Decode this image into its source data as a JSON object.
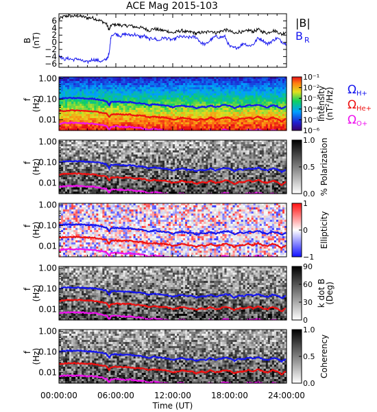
{
  "title": "ACE Mag 2015-103",
  "colors": {
    "blue": "#1515ee",
    "red": "#ee1010",
    "magenta": "#ee10ee",
    "black": "#000000"
  },
  "chart_data": [
    {
      "type": "line",
      "panel": "magnetic field",
      "ylabel": "B",
      "yunit": "(nT)",
      "ylim": [
        -7,
        8
      ],
      "yticks": [
        "6",
        "4",
        "2",
        "0",
        "−2",
        "−4",
        "−6"
      ],
      "ytick_values": [
        6,
        4,
        2,
        0,
        -2,
        -4,
        -6
      ],
      "x_hours": [
        0,
        0.5,
        1,
        1.5,
        2,
        2.5,
        3,
        3.5,
        4,
        4.5,
        5,
        5.3,
        5.5,
        6,
        6.5,
        7,
        7.5,
        8,
        8.5,
        9,
        9.5,
        10,
        10.5,
        11,
        11.5,
        12,
        12.5,
        13,
        13.5,
        14,
        14.5,
        15,
        15.5,
        16,
        16.5,
        17,
        17.5,
        18,
        18.5,
        19,
        19.5,
        20,
        20.5,
        21,
        21.5,
        22,
        22.5,
        23,
        23.5,
        24
      ],
      "series": [
        {
          "name": "|B|",
          "color": "#000000",
          "values": [
            6.5,
            7.2,
            7.4,
            7.3,
            7.4,
            7.2,
            6.8,
            6.9,
            6.4,
            5.9,
            5.2,
            3.4,
            4.8,
            5.0,
            4.8,
            4.6,
            4.7,
            4.3,
            4.2,
            3.9,
            3.3,
            3.8,
            3.5,
            3.3,
            3.1,
            2.6,
            3.0,
            3.3,
            2.8,
            2.9,
            2.4,
            2.8,
            2.7,
            3.3,
            2.6,
            3.0,
            3.5,
            3.2,
            2.4,
            3.0,
            2.8,
            3.4,
            3.0,
            3.6,
            2.9,
            2.6,
            3.3,
            3.0,
            2.2,
            3.1
          ]
        },
        {
          "name": "B",
          "sub": "R",
          "color": "#1515ee",
          "values": [
            -3.5,
            -4.8,
            -4.5,
            -4.9,
            -4.6,
            -5.3,
            -5.6,
            -4.8,
            -5.0,
            -5.4,
            -4.8,
            -3.2,
            2.0,
            2.4,
            1.8,
            2.3,
            2.0,
            2.2,
            1.5,
            1.8,
            0.8,
            1.2,
            0.4,
            1.3,
            1.0,
            0.6,
            1.4,
            1.6,
            1.3,
            1.5,
            1.4,
            -0.2,
            -0.6,
            0.7,
            1.6,
            1.4,
            1.6,
            -1.2,
            -1.6,
            -1.3,
            -0.2,
            -1.0,
            -0.6,
            1.2,
            0.6,
            -0.5,
            0.4,
            1.2,
            0.2,
            -0.6
          ]
        }
      ]
    },
    {
      "type": "heatmap",
      "panel": "intensity",
      "ylabel": "f",
      "yunit": "(Hz)",
      "yscale": "log",
      "ylim": [
        0.003,
        1.2
      ],
      "yticks": [
        "1.00",
        "0.10",
        "0.01"
      ],
      "ytick_values": [
        1.0,
        0.1,
        0.01
      ],
      "colorbar_label": "Intensity",
      "colorbar_unit": "(nT",
      "colorbar_unit_sup": "2",
      "colorbar_unit_end": "/Hz)",
      "colorbar_scheme": "rainbow",
      "colorbar_range": [
        -6,
        -1
      ],
      "colorbar_ticks": [
        "10⁻¹",
        "10⁻²",
        "10⁻³",
        "10⁻⁴",
        "10⁻⁵",
        "10⁻⁶"
      ],
      "colorbar_tick_values": [
        -1,
        -2,
        -3,
        -4,
        -5,
        -6
      ]
    },
    {
      "type": "heatmap",
      "panel": "polarization",
      "ylabel": "f",
      "yunit": "(Hz)",
      "yscale": "log",
      "ylim": [
        0.003,
        1.2
      ],
      "yticks": [
        "1.00",
        "0.10",
        "0.01"
      ],
      "ytick_values": [
        1.0,
        0.1,
        0.01
      ],
      "colorbar_label": "% Polarization",
      "colorbar_scheme": "gray",
      "colorbar_range": [
        0,
        1
      ],
      "colorbar_ticks": [
        "1.0",
        "0.5",
        "0.0"
      ],
      "colorbar_tick_values": [
        1.0,
        0.5,
        0.0
      ]
    },
    {
      "type": "heatmap",
      "panel": "ellipticity",
      "ylabel": "f",
      "yunit": "(Hz)",
      "yscale": "log",
      "ylim": [
        0.003,
        1.2
      ],
      "yticks": [
        "1.00",
        "0.10",
        "0.01"
      ],
      "ytick_values": [
        1.0,
        0.1,
        0.01
      ],
      "colorbar_label": "Ellipticity",
      "colorbar_scheme": "bluewhitered",
      "colorbar_range": [
        -1,
        1
      ],
      "colorbar_ticks": [
        "1",
        "0",
        "−1"
      ],
      "colorbar_tick_values": [
        1,
        0,
        -1
      ]
    },
    {
      "type": "heatmap",
      "panel": "wave normal angle",
      "ylabel": "f",
      "yunit": "(Hz)",
      "yscale": "log",
      "ylim": [
        0.003,
        1.2
      ],
      "yticks": [
        "1.00",
        "0.10",
        "0.01"
      ],
      "ytick_values": [
        1.0,
        0.1,
        0.01
      ],
      "colorbar_label": "k dot B",
      "colorbar_unit": "(Deg)",
      "colorbar_scheme": "gray",
      "colorbar_range": [
        0,
        90
      ],
      "colorbar_ticks": [
        "90",
        "60",
        "30",
        "0"
      ],
      "colorbar_tick_values": [
        90,
        60,
        30,
        0
      ]
    },
    {
      "type": "heatmap",
      "panel": "coherency",
      "ylabel": "f",
      "yunit": "(Hz)",
      "yscale": "log",
      "ylim": [
        0.003,
        1.2
      ],
      "yticks": [
        "1.00",
        "0.10",
        "0.01"
      ],
      "ytick_values": [
        1.0,
        0.1,
        0.01
      ],
      "colorbar_label": "Coherency",
      "colorbar_scheme": "gray",
      "colorbar_range": [
        0,
        1
      ],
      "colorbar_ticks": [
        "1.0",
        "0.5",
        "0.0"
      ],
      "colorbar_tick_values": [
        1.0,
        0.5,
        0.0
      ]
    }
  ],
  "gyrofrequency_lines": {
    "x_hours": [
      0,
      0.5,
      1,
      1.5,
      2,
      2.5,
      3,
      3.5,
      4,
      4.5,
      5,
      5.3,
      5.5,
      6,
      6.5,
      7,
      7.5,
      8,
      8.5,
      9,
      9.5,
      10,
      10.5,
      11,
      11.5,
      12,
      12.5,
      13,
      13.5,
      14,
      14.5,
      15,
      15.5,
      16,
      16.5,
      17,
      17.5,
      18,
      18.5,
      19,
      19.5,
      20,
      20.5,
      21,
      21.5,
      22,
      22.5,
      23,
      23.5,
      24
    ],
    "series": [
      {
        "name": "Ω",
        "sub": "H+",
        "color": "#1515ee",
        "values": [
          0.099,
          0.11,
          0.113,
          0.111,
          0.113,
          0.11,
          0.104,
          0.105,
          0.098,
          0.09,
          0.079,
          0.052,
          0.073,
          0.076,
          0.073,
          0.07,
          0.072,
          0.066,
          0.064,
          0.059,
          0.05,
          0.058,
          0.053,
          0.05,
          0.047,
          0.04,
          0.046,
          0.05,
          0.043,
          0.044,
          0.037,
          0.043,
          0.041,
          0.05,
          0.04,
          0.046,
          0.053,
          0.049,
          0.037,
          0.046,
          0.043,
          0.052,
          0.046,
          0.055,
          0.044,
          0.04,
          0.05,
          0.046,
          0.034,
          0.047
        ]
      },
      {
        "name": "Ω",
        "sub": "He+",
        "color": "#ee1010",
        "values": [
          0.025,
          0.027,
          0.028,
          0.028,
          0.028,
          0.027,
          0.026,
          0.026,
          0.024,
          0.022,
          0.02,
          0.013,
          0.018,
          0.019,
          0.018,
          0.018,
          0.018,
          0.016,
          0.016,
          0.015,
          0.013,
          0.014,
          0.013,
          0.013,
          0.012,
          0.01,
          0.011,
          0.013,
          0.011,
          0.011,
          0.009,
          0.011,
          0.01,
          0.013,
          0.01,
          0.011,
          0.013,
          0.012,
          0.009,
          0.011,
          0.011,
          0.013,
          0.011,
          0.014,
          0.011,
          0.01,
          0.013,
          0.011,
          0.008,
          0.012
        ]
      },
      {
        "name": "Ω",
        "sub": "O+",
        "color": "#ee10ee",
        "values": [
          0.0062,
          0.0069,
          0.0071,
          0.0069,
          0.0071,
          0.0069,
          0.0065,
          0.0066,
          0.0061,
          0.0056,
          0.005,
          0.0033,
          0.0046,
          0.0048,
          0.0046,
          0.0044,
          0.0045,
          0.0041,
          0.004,
          0.0037,
          0.0031,
          0.0036,
          0.0033,
          0.0031,
          0.0029,
          0.0025,
          0.0029,
          0.0031,
          0.0027,
          0.0028,
          0.0023,
          0.0027,
          0.0026,
          0.0031,
          0.0025,
          0.0029,
          0.0033,
          0.003,
          0.0023,
          0.0029,
          0.0027,
          0.0032,
          0.0029,
          0.0034,
          0.0028,
          0.0025,
          0.0031,
          0.0029,
          0.0021,
          0.0029
        ]
      }
    ]
  },
  "x_axis": {
    "label": "Time (UT)",
    "ticks": [
      "00:00:00",
      "06:00:00",
      "12:00:00",
      "18:00:00",
      "24:00:00"
    ],
    "tick_hours": [
      0,
      6,
      12,
      18,
      24
    ]
  }
}
